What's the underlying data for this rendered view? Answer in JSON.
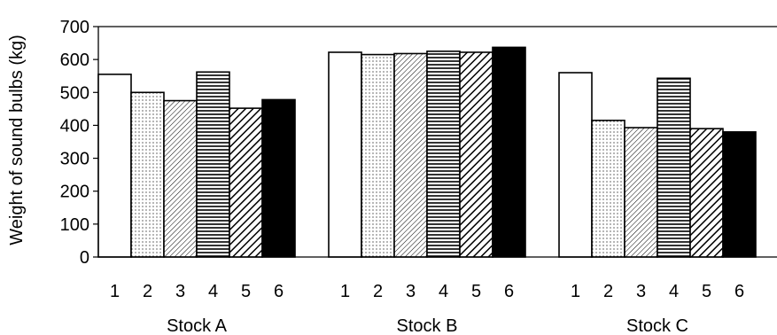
{
  "chart_data": {
    "type": "bar",
    "title": "",
    "xlabel": "",
    "ylabel": "Weight of sound bulbs (kg)",
    "ylim": [
      0,
      700
    ],
    "yticks": [
      0,
      100,
      200,
      300,
      400,
      500,
      600,
      700
    ],
    "grid": false,
    "legend": "none",
    "groups": [
      {
        "name": "Stock A",
        "categories": [
          "1",
          "2",
          "3",
          "4",
          "5",
          "6"
        ],
        "values": [
          555,
          500,
          475,
          562,
          452,
          478
        ]
      },
      {
        "name": "Stock B",
        "categories": [
          "1",
          "2",
          "3",
          "4",
          "5",
          "6"
        ],
        "values": [
          622,
          615,
          618,
          625,
          622,
          637
        ]
      },
      {
        "name": "Stock C",
        "categories": [
          "1",
          "2",
          "3",
          "4",
          "5",
          "6"
        ],
        "values": [
          560,
          415,
          393,
          543,
          390,
          380
        ]
      }
    ],
    "treatment_patterns": [
      "white",
      "dots",
      "fine-diagonal",
      "horizontal-lines",
      "bold-diagonal",
      "solid-black"
    ]
  }
}
